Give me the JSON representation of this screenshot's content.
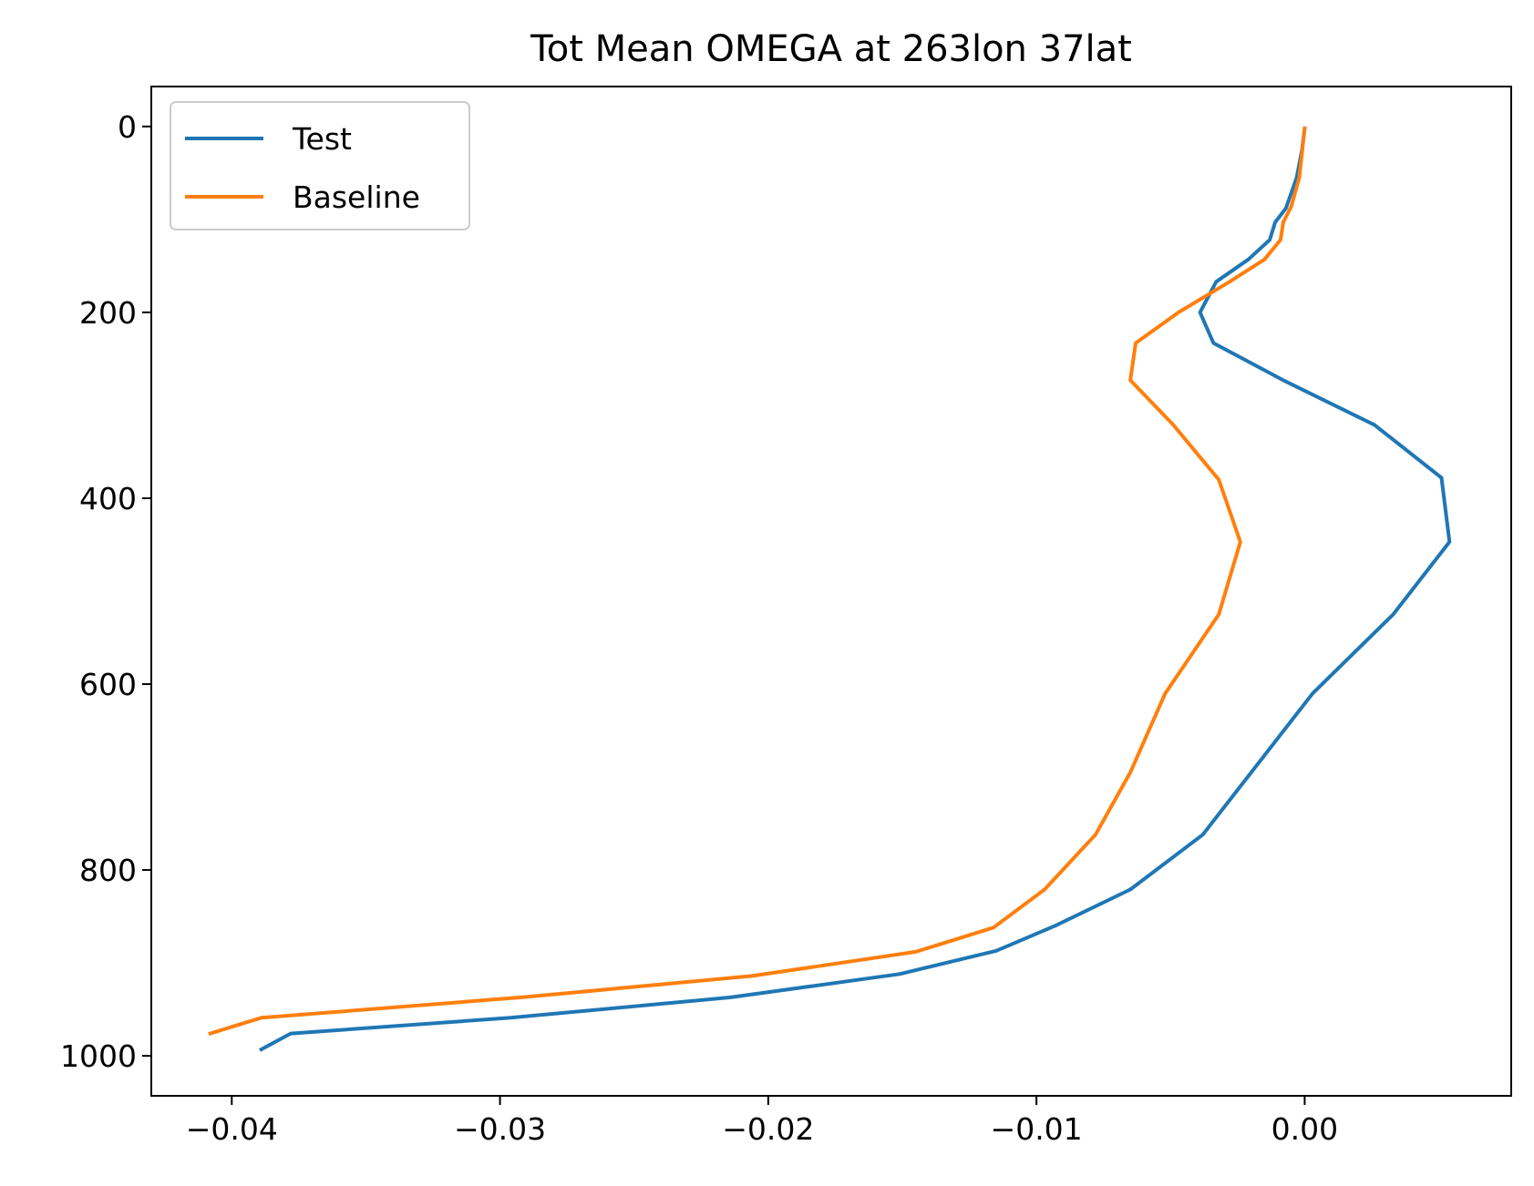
{
  "chart_data": {
    "type": "line",
    "title": "Tot Mean OMEGA at 263lon 37lat",
    "xlabel": "",
    "ylabel": "",
    "xlim": [
      -0.043,
      0.0077
    ],
    "ylim": [
      1043,
      -43
    ],
    "y_inverted": true,
    "grid": false,
    "legend_position": "upper-left",
    "x_ticks": [
      -0.04,
      -0.03,
      -0.02,
      -0.01,
      0.0
    ],
    "x_tick_labels": [
      "−0.04",
      "−0.03",
      "−0.02",
      "−0.01",
      "0.00"
    ],
    "y_ticks": [
      0,
      200,
      400,
      600,
      800,
      1000
    ],
    "y_tick_labels": [
      "0",
      "200",
      "400",
      "600",
      "800",
      "1000"
    ],
    "series": [
      {
        "name": "Test",
        "color": "#1f77b4",
        "x": [
          0.0,
          -0.0001,
          -0.0003,
          -0.0007,
          -0.0011,
          -0.0013,
          -0.0021,
          -0.0033,
          -0.0039,
          -0.0034,
          -0.0008,
          0.0026,
          0.0051,
          0.0054,
          0.0033,
          0.0003,
          -0.0038,
          -0.0065,
          -0.0093,
          -0.0115,
          -0.0151,
          -0.0214,
          -0.0296,
          -0.0378,
          -0.0389
        ],
        "y": [
          2,
          25,
          55,
          88,
          103,
          122,
          143,
          167,
          200,
          233,
          273,
          321,
          378,
          447,
          525,
          610,
          762,
          821,
          860,
          887,
          912,
          937,
          959,
          976,
          993
        ]
      },
      {
        "name": "Baseline",
        "color": "#ff7f0e",
        "x": [
          0.0,
          -0.0001,
          -0.0002,
          -0.0005,
          -0.0008,
          -0.0009,
          -0.0015,
          -0.0028,
          -0.0047,
          -0.0063,
          -0.0065,
          -0.0049,
          -0.0032,
          -0.0024,
          -0.0032,
          -0.0052,
          -0.0065,
          -0.0078,
          -0.0097,
          -0.0116,
          -0.0145,
          -0.0206,
          -0.0292,
          -0.0389,
          -0.0408
        ],
        "y": [
          2,
          28,
          55,
          86,
          103,
          122,
          143,
          167,
          200,
          233,
          273,
          321,
          380,
          447,
          525,
          610,
          695,
          762,
          821,
          862,
          888,
          914,
          937,
          959,
          976
        ]
      }
    ]
  }
}
